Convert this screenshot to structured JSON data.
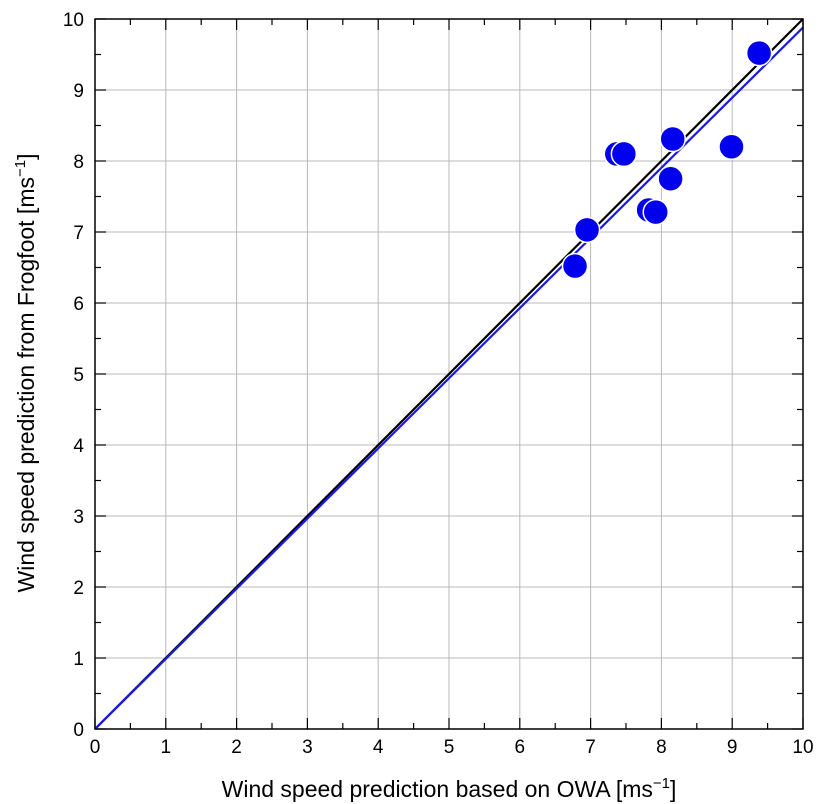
{
  "chart_data": {
    "type": "scatter",
    "xlabel": "Wind speed prediction based on OWA [ms",
    "xlabel_unit_exp": "−1",
    "xlabel_suffix": "]",
    "ylabel": "Wind speed prediction from Frogfoot [ms",
    "ylabel_unit_exp": "−1",
    "ylabel_suffix": "]",
    "xlim": [
      0,
      10
    ],
    "ylim": [
      0,
      10
    ],
    "xticks": [
      "0",
      "1",
      "2",
      "3",
      "4",
      "5",
      "6",
      "7",
      "8",
      "9",
      "10"
    ],
    "yticks": [
      "0",
      "1",
      "2",
      "3",
      "4",
      "5",
      "6",
      "7",
      "8",
      "9",
      "10"
    ],
    "grid": true,
    "points": [
      {
        "x": 6.78,
        "y": 6.52
      },
      {
        "x": 6.95,
        "y": 7.03
      },
      {
        "x": 7.37,
        "y": 8.1
      },
      {
        "x": 7.47,
        "y": 8.1
      },
      {
        "x": 7.82,
        "y": 7.31
      },
      {
        "x": 7.92,
        "y": 7.28
      },
      {
        "x": 8.13,
        "y": 7.75
      },
      {
        "x": 8.16,
        "y": 8.31
      },
      {
        "x": 8.99,
        "y": 8.2
      },
      {
        "x": 9.38,
        "y": 9.52
      }
    ],
    "point_color": "#0000ee",
    "lines": [
      {
        "type": "identity",
        "slope": 1.0,
        "intercept": 0,
        "color": "#000000"
      },
      {
        "type": "fit",
        "slope": 0.988,
        "intercept": 0,
        "color": "#1a1ae6"
      }
    ]
  }
}
